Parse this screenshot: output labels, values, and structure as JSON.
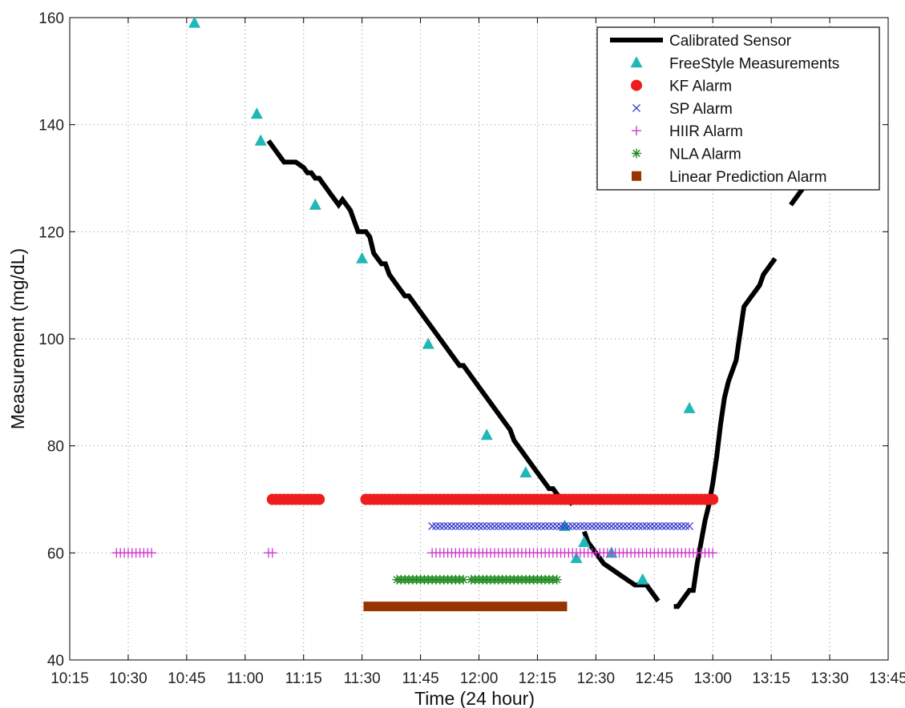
{
  "chart_data": {
    "type": "scatter",
    "title": "",
    "xlabel": "Time (24 hour)",
    "ylabel": "Measurement (mg/dL)",
    "xlim": [
      "10:15",
      "13:45"
    ],
    "ylim": [
      40,
      160
    ],
    "grid": true,
    "legend_position": "top-right",
    "x_ticks": [
      "10:15",
      "10:30",
      "10:45",
      "11:00",
      "11:15",
      "11:30",
      "11:45",
      "12:00",
      "12:15",
      "12:30",
      "12:45",
      "13:00",
      "13:15",
      "13:30",
      "13:45"
    ],
    "y_ticks": [
      40,
      60,
      80,
      100,
      120,
      140,
      160
    ],
    "series": [
      {
        "name": "Calibrated Sensor",
        "kind": "line",
        "color": "#000000",
        "segments": [
          [
            [
              "11:06",
              137
            ],
            [
              "11:07",
              136
            ],
            [
              "11:08",
              135
            ],
            [
              "11:09",
              134
            ],
            [
              "11:10",
              133
            ],
            [
              "11:13",
              133
            ],
            [
              "11:15",
              132
            ],
            [
              "11:16",
              131
            ],
            [
              "11:17",
              131
            ],
            [
              "11:18",
              130
            ],
            [
              "11:19",
              130
            ],
            [
              "11:20",
              129
            ],
            [
              "11:21",
              128
            ],
            [
              "11:22",
              127
            ],
            [
              "11:23",
              126
            ],
            [
              "11:24",
              125
            ],
            [
              "11:25",
              126
            ],
            [
              "11:26",
              125
            ],
            [
              "11:27",
              124
            ],
            [
              "11:28",
              122
            ],
            [
              "11:29",
              120
            ],
            [
              "11:31",
              120
            ],
            [
              "11:32",
              119
            ],
            [
              "11:33",
              116
            ],
            [
              "11:34",
              115
            ],
            [
              "11:35",
              114
            ],
            [
              "11:36",
              114
            ],
            [
              "11:37",
              112
            ],
            [
              "11:39",
              110
            ],
            [
              "11:41",
              108
            ],
            [
              "11:42",
              108
            ],
            [
              "11:44",
              106
            ],
            [
              "11:46",
              104
            ],
            [
              "11:48",
              102
            ],
            [
              "11:50",
              100
            ],
            [
              "11:52",
              98
            ],
            [
              "11:54",
              96
            ],
            [
              "11:55",
              95
            ],
            [
              "11:56",
              95
            ],
            [
              "11:58",
              93
            ],
            [
              "12:00",
              91
            ],
            [
              "12:02",
              89
            ],
            [
              "12:04",
              87
            ],
            [
              "12:06",
              85
            ],
            [
              "12:08",
              83
            ],
            [
              "12:09",
              81
            ],
            [
              "12:11",
              79
            ],
            [
              "12:13",
              77
            ],
            [
              "12:15",
              75
            ],
            [
              "12:17",
              73
            ],
            [
              "12:18",
              72
            ],
            [
              "12:19",
              72
            ],
            [
              "12:20",
              71
            ],
            [
              "12:21",
              70
            ],
            [
              "12:22",
              70
            ],
            [
              "12:23",
              70
            ],
            [
              "12:24",
              69
            ]
          ],
          [
            [
              "12:27",
              64
            ],
            [
              "12:28",
              62
            ],
            [
              "12:30",
              60
            ],
            [
              "12:32",
              58
            ],
            [
              "12:34",
              57
            ],
            [
              "12:36",
              56
            ],
            [
              "12:38",
              55
            ],
            [
              "12:40",
              54
            ],
            [
              "12:42",
              54
            ],
            [
              "12:43",
              54
            ],
            [
              "12:44",
              53
            ],
            [
              "12:45",
              52
            ],
            [
              "12:46",
              51
            ]
          ],
          [
            [
              "12:50",
              50
            ],
            [
              "12:51",
              50
            ],
            [
              "12:52",
              51
            ],
            [
              "12:53",
              52
            ],
            [
              "12:54",
              53
            ],
            [
              "12:55",
              53
            ],
            [
              "12:56",
              58
            ],
            [
              "12:57",
              62
            ],
            [
              "12:58",
              66
            ],
            [
              "12:59",
              69
            ],
            [
              "13:00",
              73
            ],
            [
              "13:01",
              78
            ],
            [
              "13:02",
              84
            ],
            [
              "13:03",
              89
            ],
            [
              "13:04",
              92
            ],
            [
              "13:06",
              96
            ],
            [
              "13:07",
              101
            ],
            [
              "13:08",
              106
            ],
            [
              "13:10",
              108
            ],
            [
              "13:11",
              109
            ],
            [
              "13:12",
              110
            ],
            [
              "13:13",
              112
            ],
            [
              "13:14",
              113
            ],
            [
              "13:15",
              114
            ],
            [
              "13:16",
              115
            ]
          ],
          [
            [
              "13:20",
              125
            ],
            [
              "13:22",
              127
            ],
            [
              "13:24",
              129
            ],
            [
              "13:25",
              130
            ]
          ]
        ]
      },
      {
        "name": "FreeStyle Measurements",
        "kind": "triangle",
        "color": "#1fb7b7",
        "points": [
          [
            "10:47",
            159
          ],
          [
            "11:03",
            142
          ],
          [
            "11:04",
            137
          ],
          [
            "11:18",
            125
          ],
          [
            "11:30",
            115
          ],
          [
            "11:47",
            99
          ],
          [
            "12:02",
            82
          ],
          [
            "12:12",
            75
          ],
          [
            "12:22",
            65
          ],
          [
            "12:25",
            59
          ],
          [
            "12:27",
            62
          ],
          [
            "12:34",
            60
          ],
          [
            "12:42",
            55
          ],
          [
            "12:54",
            87
          ]
        ]
      },
      {
        "name": "KF Alarm",
        "kind": "circle",
        "color": "#ee1c1c",
        "ranges": [
          {
            "from": "11:07",
            "to": "11:19",
            "y": 70
          },
          {
            "from": "11:31",
            "to": "13:00",
            "y": 70
          }
        ]
      },
      {
        "name": "SP Alarm",
        "kind": "x",
        "color": "#3333cc",
        "ranges": [
          {
            "from": "11:48",
            "to": "12:54",
            "y": 65
          }
        ]
      },
      {
        "name": "HIIR Alarm",
        "kind": "plus",
        "color": "#cc33cc",
        "ranges": [
          {
            "from": "10:27",
            "to": "10:36",
            "y": 60
          },
          {
            "from": "11:06",
            "to": "11:07",
            "y": 60
          },
          {
            "from": "11:48",
            "to": "13:00",
            "y": 60
          }
        ]
      },
      {
        "name": "NLA Alarm",
        "kind": "star",
        "color": "#1e8a1e",
        "ranges": [
          {
            "from": "11:39",
            "to": "11:56",
            "y": 55
          },
          {
            "from": "11:58",
            "to": "12:13",
            "y": 55
          },
          {
            "from": "12:14",
            "to": "12:20",
            "y": 55
          }
        ]
      },
      {
        "name": "Linear Prediction Alarm",
        "kind": "square",
        "color": "#993300",
        "ranges": [
          {
            "from": "11:31",
            "to": "12:22",
            "y": 50
          }
        ]
      }
    ]
  }
}
